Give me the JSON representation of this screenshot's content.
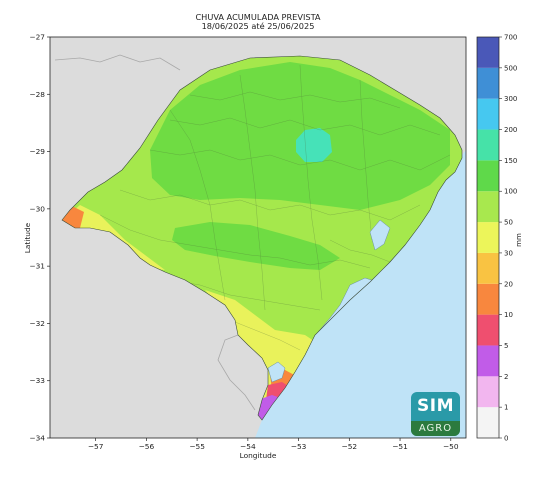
{
  "title": {
    "line1": "CHUVA ACUMULADA PREVISTA",
    "line2": "18/06/2025 até 25/06/2025"
  },
  "axes": {
    "xlabel": "Longitude",
    "ylabel": "Latitude",
    "xlim": [
      -57.9,
      -49.7
    ],
    "ylim": [
      -34,
      -27
    ],
    "xticks": [
      -57,
      -56,
      -55,
      -54,
      -53,
      -52,
      -51,
      -50
    ],
    "yticks": [
      -27,
      -28,
      -29,
      -30,
      -31,
      -32,
      -33,
      -34
    ]
  },
  "colorbar": {
    "unit": "mm",
    "levels": [
      "0",
      "1",
      "2",
      "5",
      "10",
      "20",
      "30",
      "50",
      "100",
      "150",
      "200",
      "300",
      "500",
      "700"
    ],
    "colors": [
      "#f4f4f4",
      "#f2b6ef",
      "#c15ce8",
      "#ef4f6f",
      "#f8873e",
      "#f9c342",
      "#ecf55a",
      "#a8e84e",
      "#5fd94a",
      "#46e2a8",
      "#46c8f0",
      "#3f8fd6",
      "#4a58b8"
    ]
  },
  "map": {
    "background_land": "#dcdcdc",
    "ocean_color": "#bfe3f7",
    "region_colors": {
      "le_100_50": "#a5e84c",
      "gt_100": "#6fdc43",
      "gt_150": "#46e2b8",
      "yellow_30": "#e9f25b",
      "orange_20": "#f8873e",
      "red_10": "#ef4f6f",
      "purple_5": "#c15ce8"
    }
  },
  "logo": {
    "top": "SIM",
    "bottom": "AGRO"
  }
}
